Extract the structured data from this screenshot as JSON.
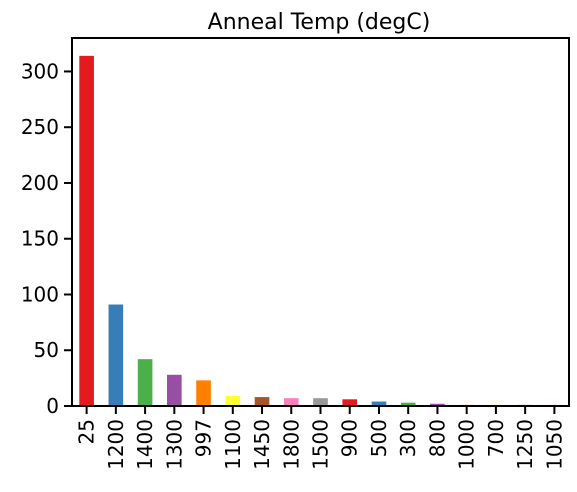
{
  "chart_data": {
    "type": "bar",
    "title": "Anneal Temp (degC)",
    "xlabel": "",
    "ylabel": "",
    "categories": [
      "25",
      "1200",
      "1400",
      "1300",
      "997",
      "1100",
      "1450",
      "1800",
      "1500",
      "900",
      "500",
      "300",
      "800",
      "1000",
      "700",
      "1250",
      "1050"
    ],
    "values": [
      314,
      91,
      42,
      28,
      23,
      9,
      8,
      7,
      7,
      6,
      4,
      3,
      2,
      1,
      1,
      1,
      1
    ],
    "colors": [
      "#e41a1c",
      "#377eb8",
      "#4daf4a",
      "#984ea3",
      "#ff7f00",
      "#ffff33",
      "#a65628",
      "#f781bf",
      "#999999",
      "#e41a1c",
      "#377eb8",
      "#4daf4a",
      "#984ea3",
      "#ff7f00",
      "#ffff33",
      "#a65628",
      "#f781bf"
    ],
    "yticks": [
      "0",
      "50",
      "100",
      "150",
      "200",
      "250",
      "300"
    ],
    "ylim": [
      0,
      330
    ],
    "grid": false,
    "legend": "none"
  }
}
